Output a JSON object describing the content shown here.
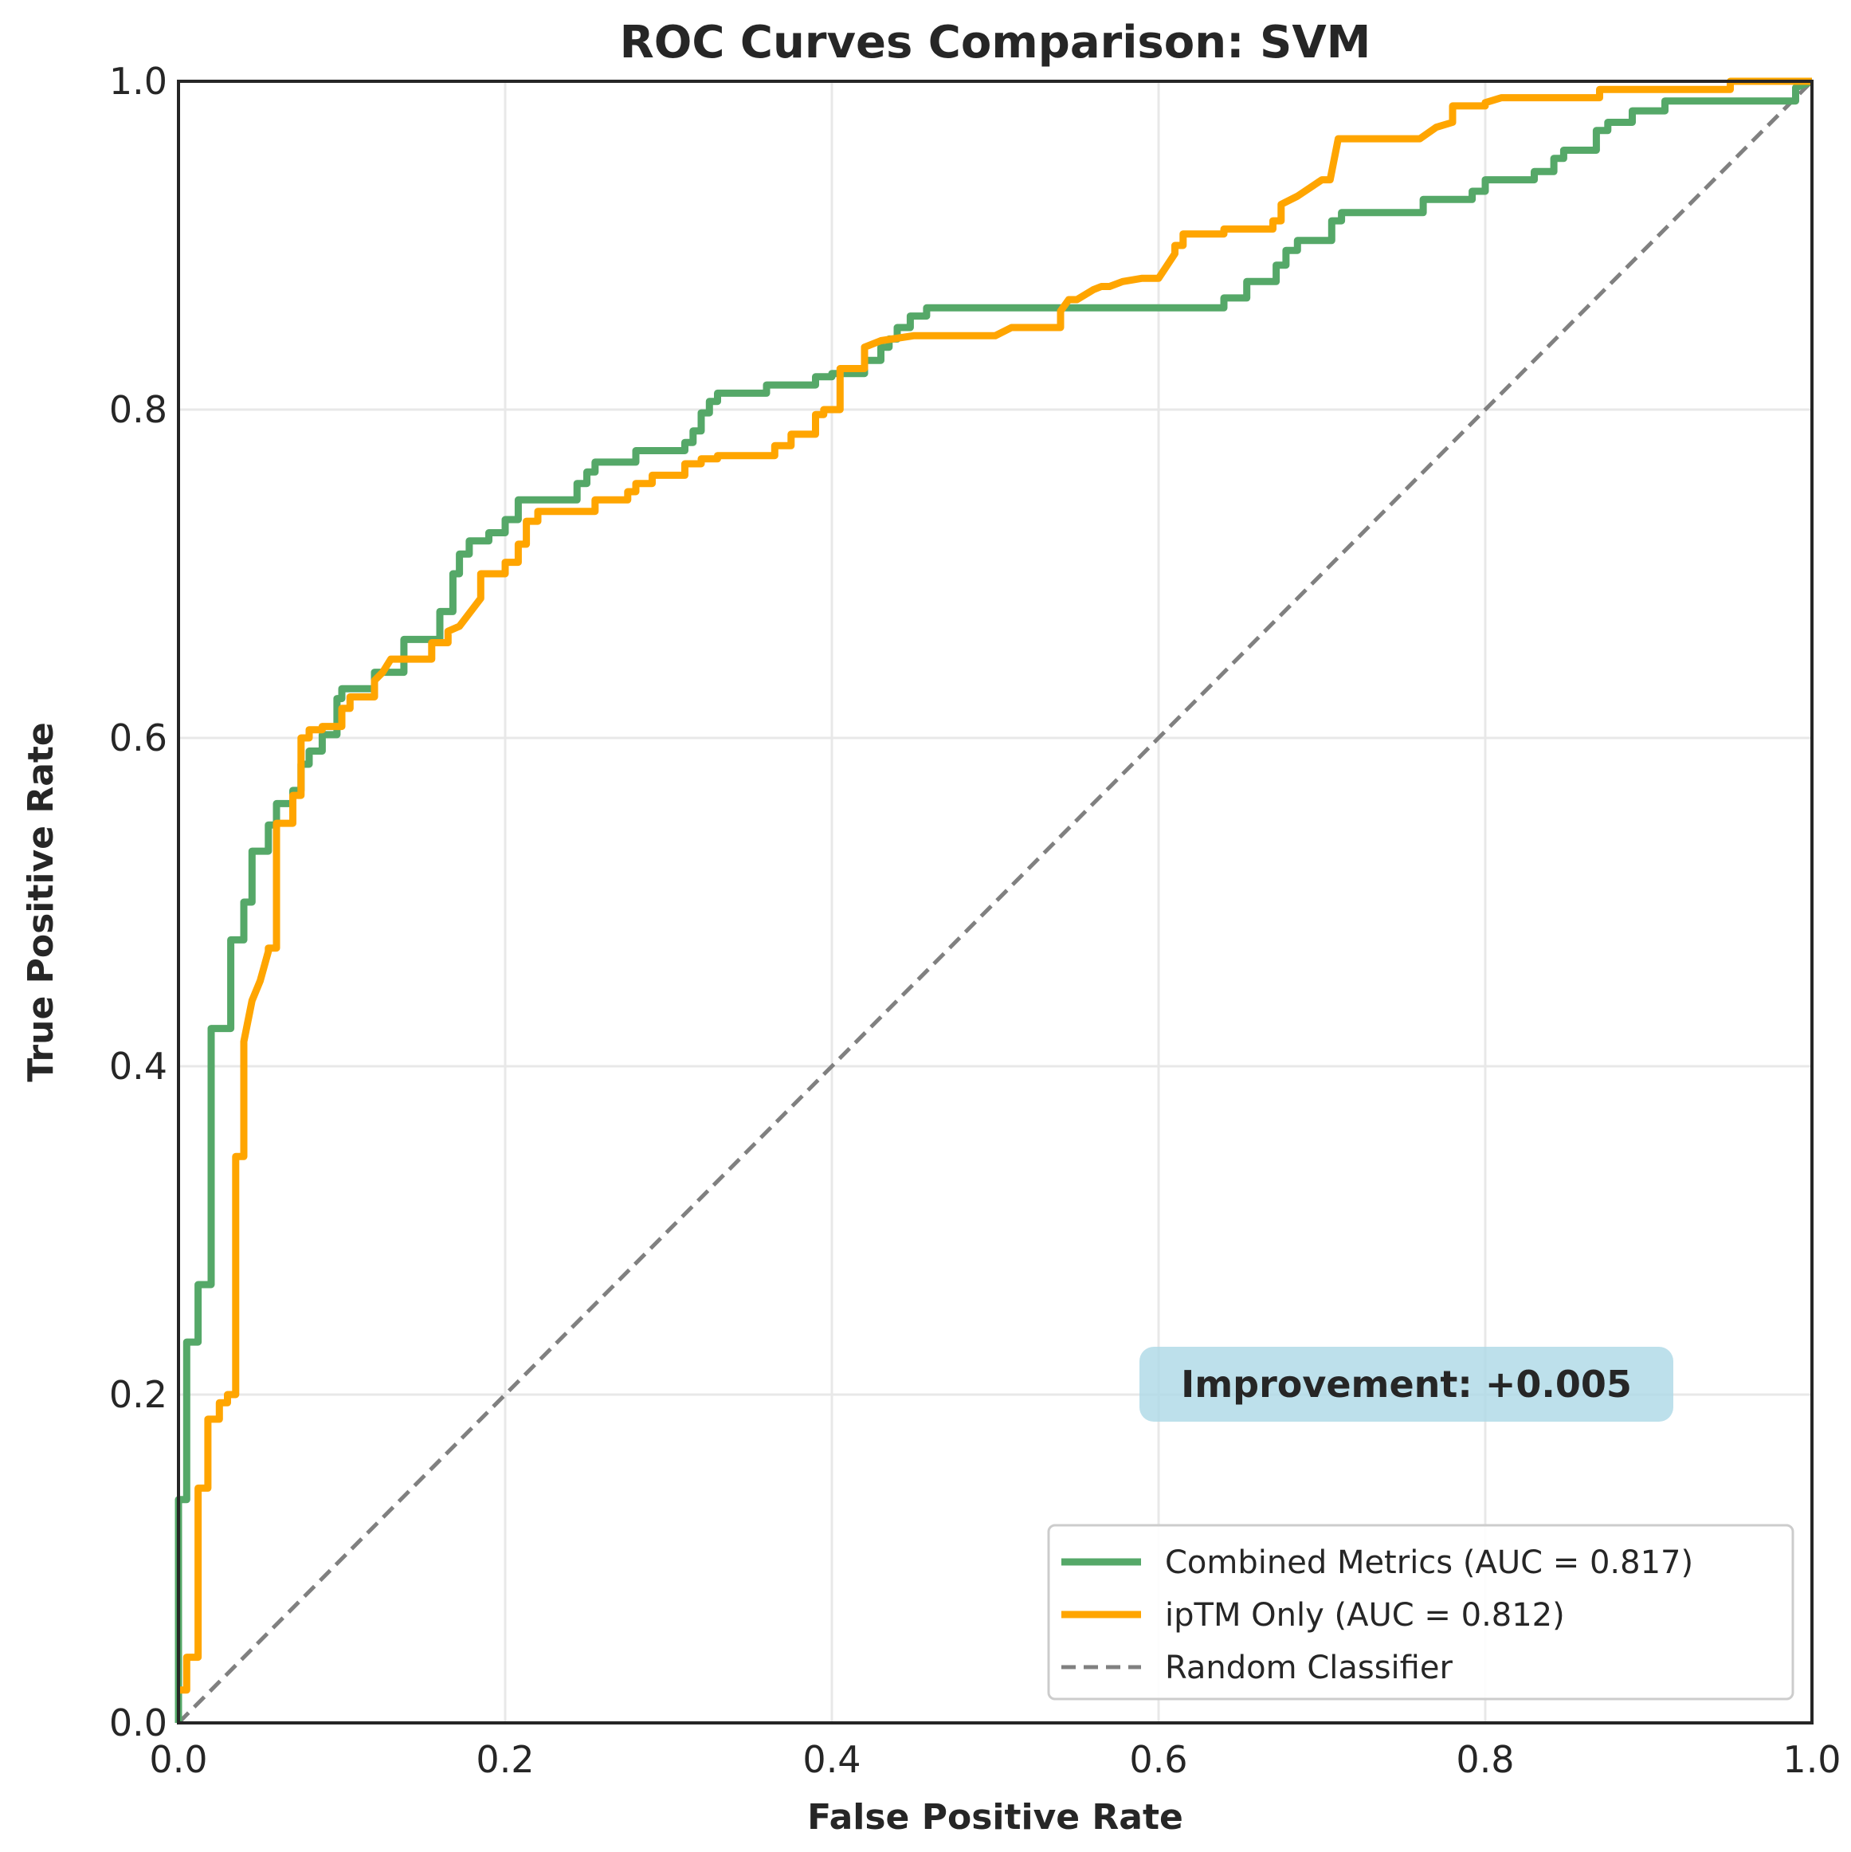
{
  "chart_data": {
    "type": "line",
    "title": "ROC Curves Comparison: SVM",
    "xlabel": "False Positive Rate",
    "ylabel": "True Positive Rate",
    "xlim": [
      0,
      1
    ],
    "ylim": [
      0,
      1
    ],
    "xticks": [
      "0.0",
      "0.2",
      "0.4",
      "0.6",
      "0.8",
      "1.0"
    ],
    "yticks": [
      "0.0",
      "0.2",
      "0.4",
      "0.6",
      "0.8",
      "1.0"
    ],
    "grid": true,
    "legend_position": "lower-right",
    "annotation": "Improvement: +0.005",
    "series": [
      {
        "name": "Combined Metrics (AUC = 0.817)",
        "color": "#55a868",
        "style": "solid",
        "x": [
          0,
          0,
          0.005,
          0.005,
          0.012,
          0.012,
          0.02,
          0.02,
          0.032,
          0.032,
          0.04,
          0.04,
          0.045,
          0.045,
          0.055,
          0.055,
          0.06,
          0.06,
          0.07,
          0.07,
          0.075,
          0.075,
          0.08,
          0.08,
          0.088,
          0.088,
          0.097,
          0.097,
          0.1,
          0.1,
          0.12,
          0.12,
          0.125,
          0.125,
          0.138,
          0.138,
          0.16,
          0.16,
          0.168,
          0.168,
          0.172,
          0.172,
          0.178,
          0.178,
          0.19,
          0.19,
          0.2,
          0.2,
          0.208,
          0.208,
          0.244,
          0.244,
          0.25,
          0.25,
          0.255,
          0.255,
          0.28,
          0.28,
          0.31,
          0.31,
          0.315,
          0.315,
          0.32,
          0.32,
          0.325,
          0.325,
          0.33,
          0.33,
          0.36,
          0.36,
          0.39,
          0.39,
          0.4,
          0.4,
          0.42,
          0.42,
          0.43,
          0.43,
          0.435,
          0.435,
          0.44,
          0.44,
          0.448,
          0.448,
          0.458,
          0.458,
          0.64,
          0.64,
          0.654,
          0.654,
          0.672,
          0.672,
          0.678,
          0.678,
          0.685,
          0.685,
          0.706,
          0.706,
          0.712,
          0.712,
          0.762,
          0.762,
          0.792,
          0.792,
          0.8,
          0.8,
          0.83,
          0.83,
          0.842,
          0.842,
          0.848,
          0.848,
          0.868,
          0.868,
          0.875,
          0.875,
          0.89,
          0.89,
          0.91,
          0.91,
          0.99,
          0.99,
          1
        ],
        "y": [
          0,
          0.136,
          0.136,
          0.232,
          0.232,
          0.267,
          0.267,
          0.423,
          0.423,
          0.477,
          0.477,
          0.5,
          0.5,
          0.531,
          0.531,
          0.547,
          0.547,
          0.56,
          0.56,
          0.568,
          0.568,
          0.584,
          0.584,
          0.592,
          0.592,
          0.602,
          0.602,
          0.624,
          0.624,
          0.63,
          0.63,
          0.64,
          0.64,
          0.64,
          0.64,
          0.66,
          0.66,
          0.677,
          0.677,
          0.7,
          0.7,
          0.712,
          0.712,
          0.72,
          0.72,
          0.725,
          0.725,
          0.733,
          0.733,
          0.745,
          0.745,
          0.755,
          0.755,
          0.762,
          0.762,
          0.768,
          0.768,
          0.775,
          0.775,
          0.78,
          0.78,
          0.787,
          0.787,
          0.798,
          0.798,
          0.805,
          0.805,
          0.81,
          0.81,
          0.815,
          0.815,
          0.82,
          0.82,
          0.822,
          0.822,
          0.83,
          0.83,
          0.838,
          0.838,
          0.843,
          0.843,
          0.85,
          0.85,
          0.857,
          0.857,
          0.862,
          0.862,
          0.868,
          0.868,
          0.878,
          0.878,
          0.888,
          0.888,
          0.897,
          0.897,
          0.903,
          0.903,
          0.915,
          0.915,
          0.92,
          0.92,
          0.928,
          0.928,
          0.933,
          0.933,
          0.94,
          0.94,
          0.945,
          0.945,
          0.953,
          0.953,
          0.958,
          0.958,
          0.97,
          0.97,
          0.975,
          0.975,
          0.982,
          0.982,
          0.988,
          0.988,
          0.996,
          1
        ]
      },
      {
        "name": "ipTM Only (AUC = 0.812)",
        "color": "#ffa500",
        "style": "solid",
        "x": [
          0,
          0.005,
          0.005,
          0.012,
          0.012,
          0.018,
          0.018,
          0.025,
          0.025,
          0.03,
          0.03,
          0.035,
          0.035,
          0.04,
          0.04,
          0.045,
          0.05,
          0.055,
          0.055,
          0.06,
          0.06,
          0.07,
          0.07,
          0.075,
          0.075,
          0.08,
          0.08,
          0.088,
          0.088,
          0.1,
          0.1,
          0.105,
          0.105,
          0.12,
          0.12,
          0.125,
          0.13,
          0.14,
          0.155,
          0.155,
          0.165,
          0.165,
          0.172,
          0.185,
          0.185,
          0.2,
          0.2,
          0.208,
          0.208,
          0.213,
          0.213,
          0.22,
          0.22,
          0.255,
          0.255,
          0.275,
          0.275,
          0.28,
          0.28,
          0.29,
          0.29,
          0.31,
          0.31,
          0.32,
          0.32,
          0.33,
          0.33,
          0.365,
          0.365,
          0.375,
          0.375,
          0.39,
          0.39,
          0.395,
          0.395,
          0.405,
          0.405,
          0.42,
          0.42,
          0.43,
          0.45,
          0.5,
          0.51,
          0.54,
          0.54,
          0.545,
          0.55,
          0.56,
          0.565,
          0.57,
          0.578,
          0.59,
          0.6,
          0.61,
          0.61,
          0.615,
          0.615,
          0.64,
          0.64,
          0.67,
          0.67,
          0.675,
          0.675,
          0.685,
          0.7,
          0.705,
          0.71,
          0.73,
          0.76,
          0.77,
          0.77,
          0.78,
          0.78,
          0.8,
          0.8,
          0.81,
          0.83,
          0.87,
          0.87,
          0.95,
          0.95,
          1
        ],
        "y": [
          0.02,
          0.02,
          0.04,
          0.04,
          0.143,
          0.143,
          0.185,
          0.185,
          0.195,
          0.195,
          0.2,
          0.2,
          0.345,
          0.345,
          0.415,
          0.44,
          0.452,
          0.47,
          0.472,
          0.472,
          0.548,
          0.548,
          0.565,
          0.565,
          0.6,
          0.6,
          0.605,
          0.605,
          0.607,
          0.607,
          0.618,
          0.618,
          0.625,
          0.625,
          0.635,
          0.64,
          0.648,
          0.648,
          0.648,
          0.658,
          0.658,
          0.665,
          0.668,
          0.685,
          0.7,
          0.7,
          0.707,
          0.707,
          0.718,
          0.718,
          0.732,
          0.732,
          0.738,
          0.738,
          0.745,
          0.745,
          0.75,
          0.75,
          0.755,
          0.755,
          0.76,
          0.76,
          0.767,
          0.767,
          0.77,
          0.77,
          0.772,
          0.772,
          0.778,
          0.778,
          0.785,
          0.785,
          0.797,
          0.797,
          0.8,
          0.8,
          0.825,
          0.825,
          0.838,
          0.842,
          0.845,
          0.845,
          0.85,
          0.85,
          0.86,
          0.867,
          0.867,
          0.873,
          0.875,
          0.875,
          0.878,
          0.88,
          0.88,
          0.895,
          0.9,
          0.9,
          0.907,
          0.907,
          0.91,
          0.91,
          0.915,
          0.915,
          0.925,
          0.93,
          0.94,
          0.94,
          0.965,
          0.965,
          0.965,
          0.972,
          0.972,
          0.975,
          0.985,
          0.985,
          0.987,
          0.99,
          0.99,
          0.99,
          0.995,
          0.995,
          1,
          1
        ]
      },
      {
        "name": "Random Classifier",
        "color": "#808080",
        "style": "dashed",
        "x": [
          0,
          1
        ],
        "y": [
          0,
          1
        ]
      }
    ]
  }
}
